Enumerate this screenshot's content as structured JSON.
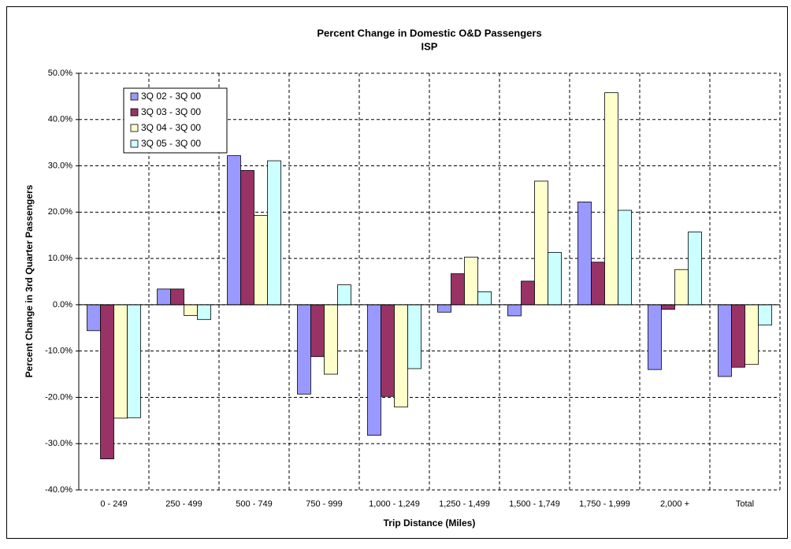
{
  "chart_data": {
    "type": "bar",
    "title": "Percent Change in Domestic O&D Passengers",
    "subtitle": "ISP",
    "x_label": "Trip Distance (Miles)",
    "y_label": "Percent Change in 3rd Quarter Passengers",
    "categories": [
      "0 - 249",
      "250 - 499",
      "500 - 749",
      "750 - 999",
      "1,000 - 1,249",
      "1,250 - 1,499",
      "1,500 - 1,749",
      "1,750 - 1,999",
      "2,000 +",
      "Total"
    ],
    "series": [
      {
        "name": "3Q 02 - 3Q 00",
        "color": "#9999ff",
        "values": [
          -5.6,
          3.4,
          32.2,
          -19.3,
          -28.2,
          -1.6,
          -2.4,
          22.2,
          -14.0,
          -15.5
        ]
      },
      {
        "name": "3Q 03 - 3Q 00",
        "color": "#993366",
        "values": [
          -33.3,
          3.4,
          29.0,
          -11.2,
          -19.8,
          6.7,
          5.1,
          9.2,
          -1.0,
          -13.5
        ]
      },
      {
        "name": "3Q 04 - 3Q 00",
        "color": "#ffffcc",
        "values": [
          -24.5,
          -2.3,
          19.3,
          -15.0,
          -22.1,
          10.3,
          26.7,
          45.8,
          7.6,
          -12.9
        ]
      },
      {
        "name": "3Q 05 - 3Q 00",
        "color": "#ccffff",
        "values": [
          -24.4,
          -3.2,
          31.1,
          4.3,
          -13.8,
          2.8,
          11.3,
          20.4,
          15.7,
          -4.4
        ]
      }
    ],
    "ylim": [
      -40,
      50
    ],
    "yticks": [
      {
        "value": -40,
        "label": "-40.0%"
      },
      {
        "value": -30,
        "label": "-30.0%"
      },
      {
        "value": -20,
        "label": "-20.0%"
      },
      {
        "value": -10,
        "label": "-10.0%"
      },
      {
        "value": 0,
        "label": "0.0%"
      },
      {
        "value": 10,
        "label": "10.0%"
      },
      {
        "value": 20,
        "label": "20.0%"
      },
      {
        "value": 30,
        "label": "30.0%"
      },
      {
        "value": 40,
        "label": "40.0%"
      },
      {
        "value": 50,
        "label": "50.0%"
      }
    ],
    "grid": true,
    "legend": "upper left"
  }
}
